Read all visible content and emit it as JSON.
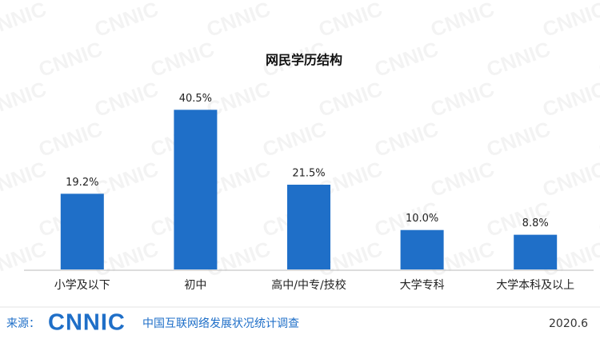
{
  "chart_data": {
    "type": "bar",
    "title": "网民学历结构",
    "categories": [
      "小学及以下",
      "初中",
      "高中/中专/技校",
      "大学专科",
      "大学本科及以上"
    ],
    "values": [
      19.2,
      40.5,
      21.5,
      10.0,
      8.8
    ],
    "value_labels": [
      "19.2%",
      "40.5%",
      "21.5%",
      "10.0%",
      "8.8%"
    ],
    "color": "#1f6fc8"
  },
  "watermark": "CNNIC",
  "footer": {
    "source_label": "来源：",
    "logo": "CNNIC",
    "survey": "中国互联网络发展状况统计调查",
    "date": "2020.6"
  }
}
